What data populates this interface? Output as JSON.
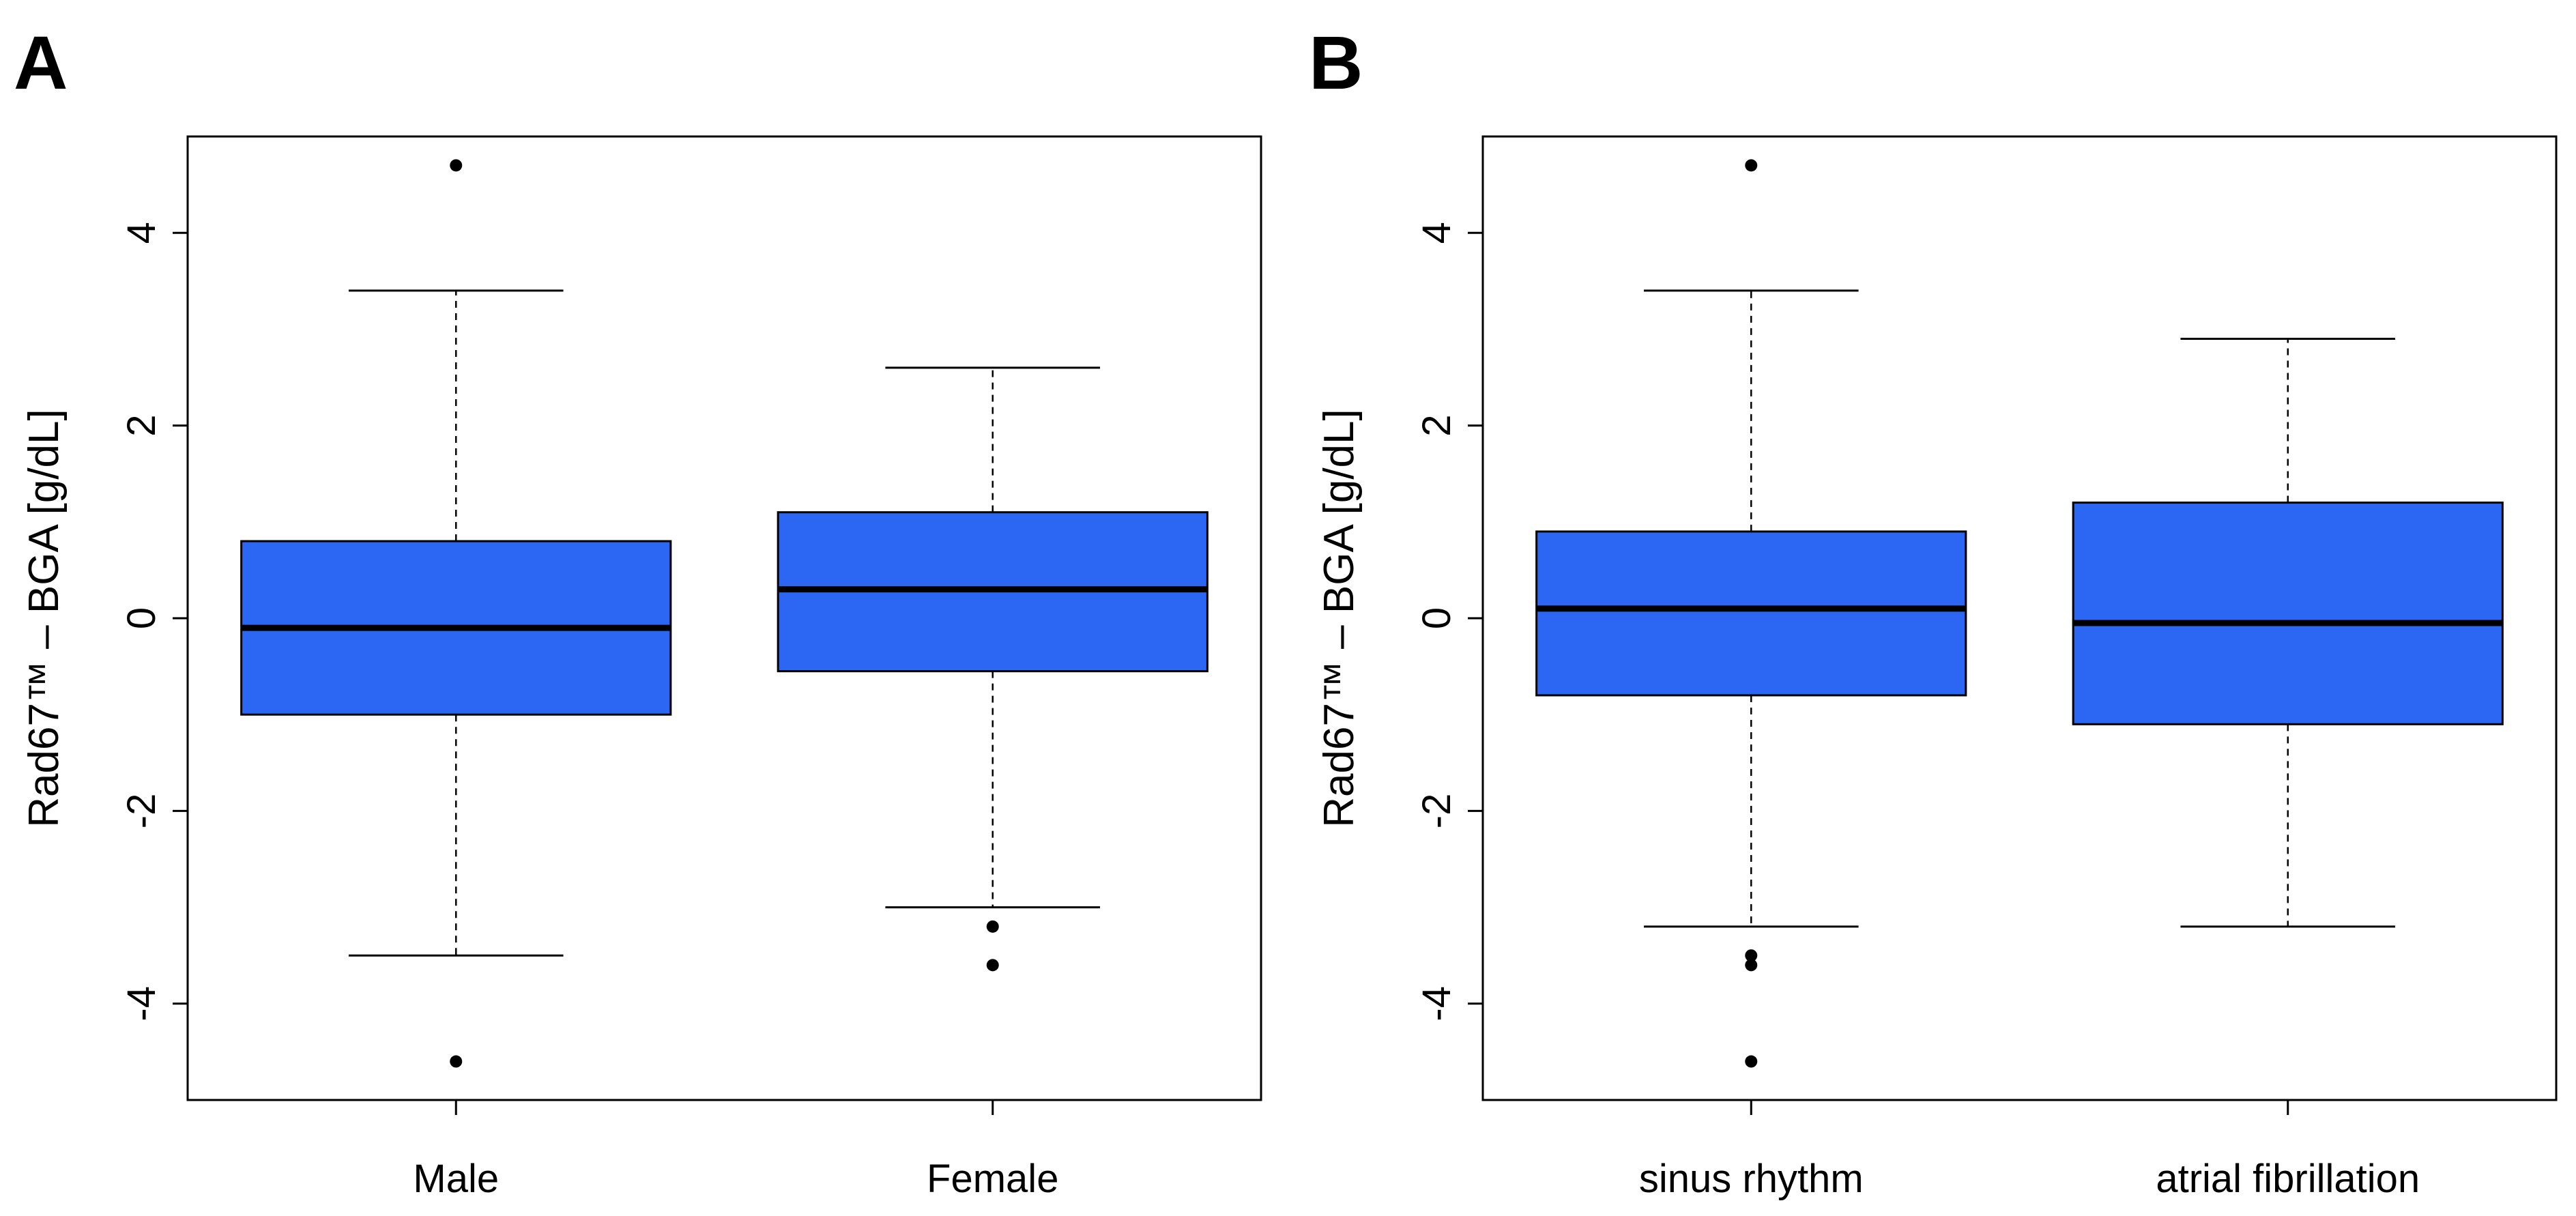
{
  "chart_data": [
    {
      "type": "box",
      "panel_label": "A",
      "ylabel": "Rad67™ – BGA [g/dL]",
      "xlabel": "",
      "ylim": [
        -5,
        5
      ],
      "yticks": [
        -4,
        -2,
        0,
        2,
        4
      ],
      "categories": [
        "Male",
        "Female"
      ],
      "boxes": [
        {
          "category": "Male",
          "whisker_low": -3.5,
          "q1": -1.0,
          "median": -0.1,
          "q3": 0.8,
          "whisker_high": 3.4,
          "outliers": [
            4.7,
            -4.6
          ]
        },
        {
          "category": "Female",
          "whisker_low": -3.0,
          "q1": -0.55,
          "median": 0.3,
          "q3": 1.1,
          "whisker_high": 2.6,
          "outliers": [
            -3.2,
            -3.6
          ]
        }
      ],
      "box_color": "#2B67F2",
      "grid": false
    },
    {
      "type": "box",
      "panel_label": "B",
      "ylabel": "Rad67™ – BGA [g/dL]",
      "xlabel": "",
      "ylim": [
        -5,
        5
      ],
      "yticks": [
        -4,
        -2,
        0,
        2,
        4
      ],
      "categories": [
        "sinus rhythm",
        "atrial fibrillation"
      ],
      "boxes": [
        {
          "category": "sinus rhythm",
          "whisker_low": -3.2,
          "q1": -0.8,
          "median": 0.1,
          "q3": 0.9,
          "whisker_high": 3.4,
          "outliers": [
            4.7,
            -3.5,
            -3.6,
            -4.6
          ]
        },
        {
          "category": "atrial fibrillation",
          "whisker_low": -3.2,
          "q1": -1.1,
          "median": -0.05,
          "q3": 1.2,
          "whisker_high": 2.9,
          "outliers": []
        }
      ],
      "box_color": "#2B67F2",
      "grid": false
    }
  ]
}
